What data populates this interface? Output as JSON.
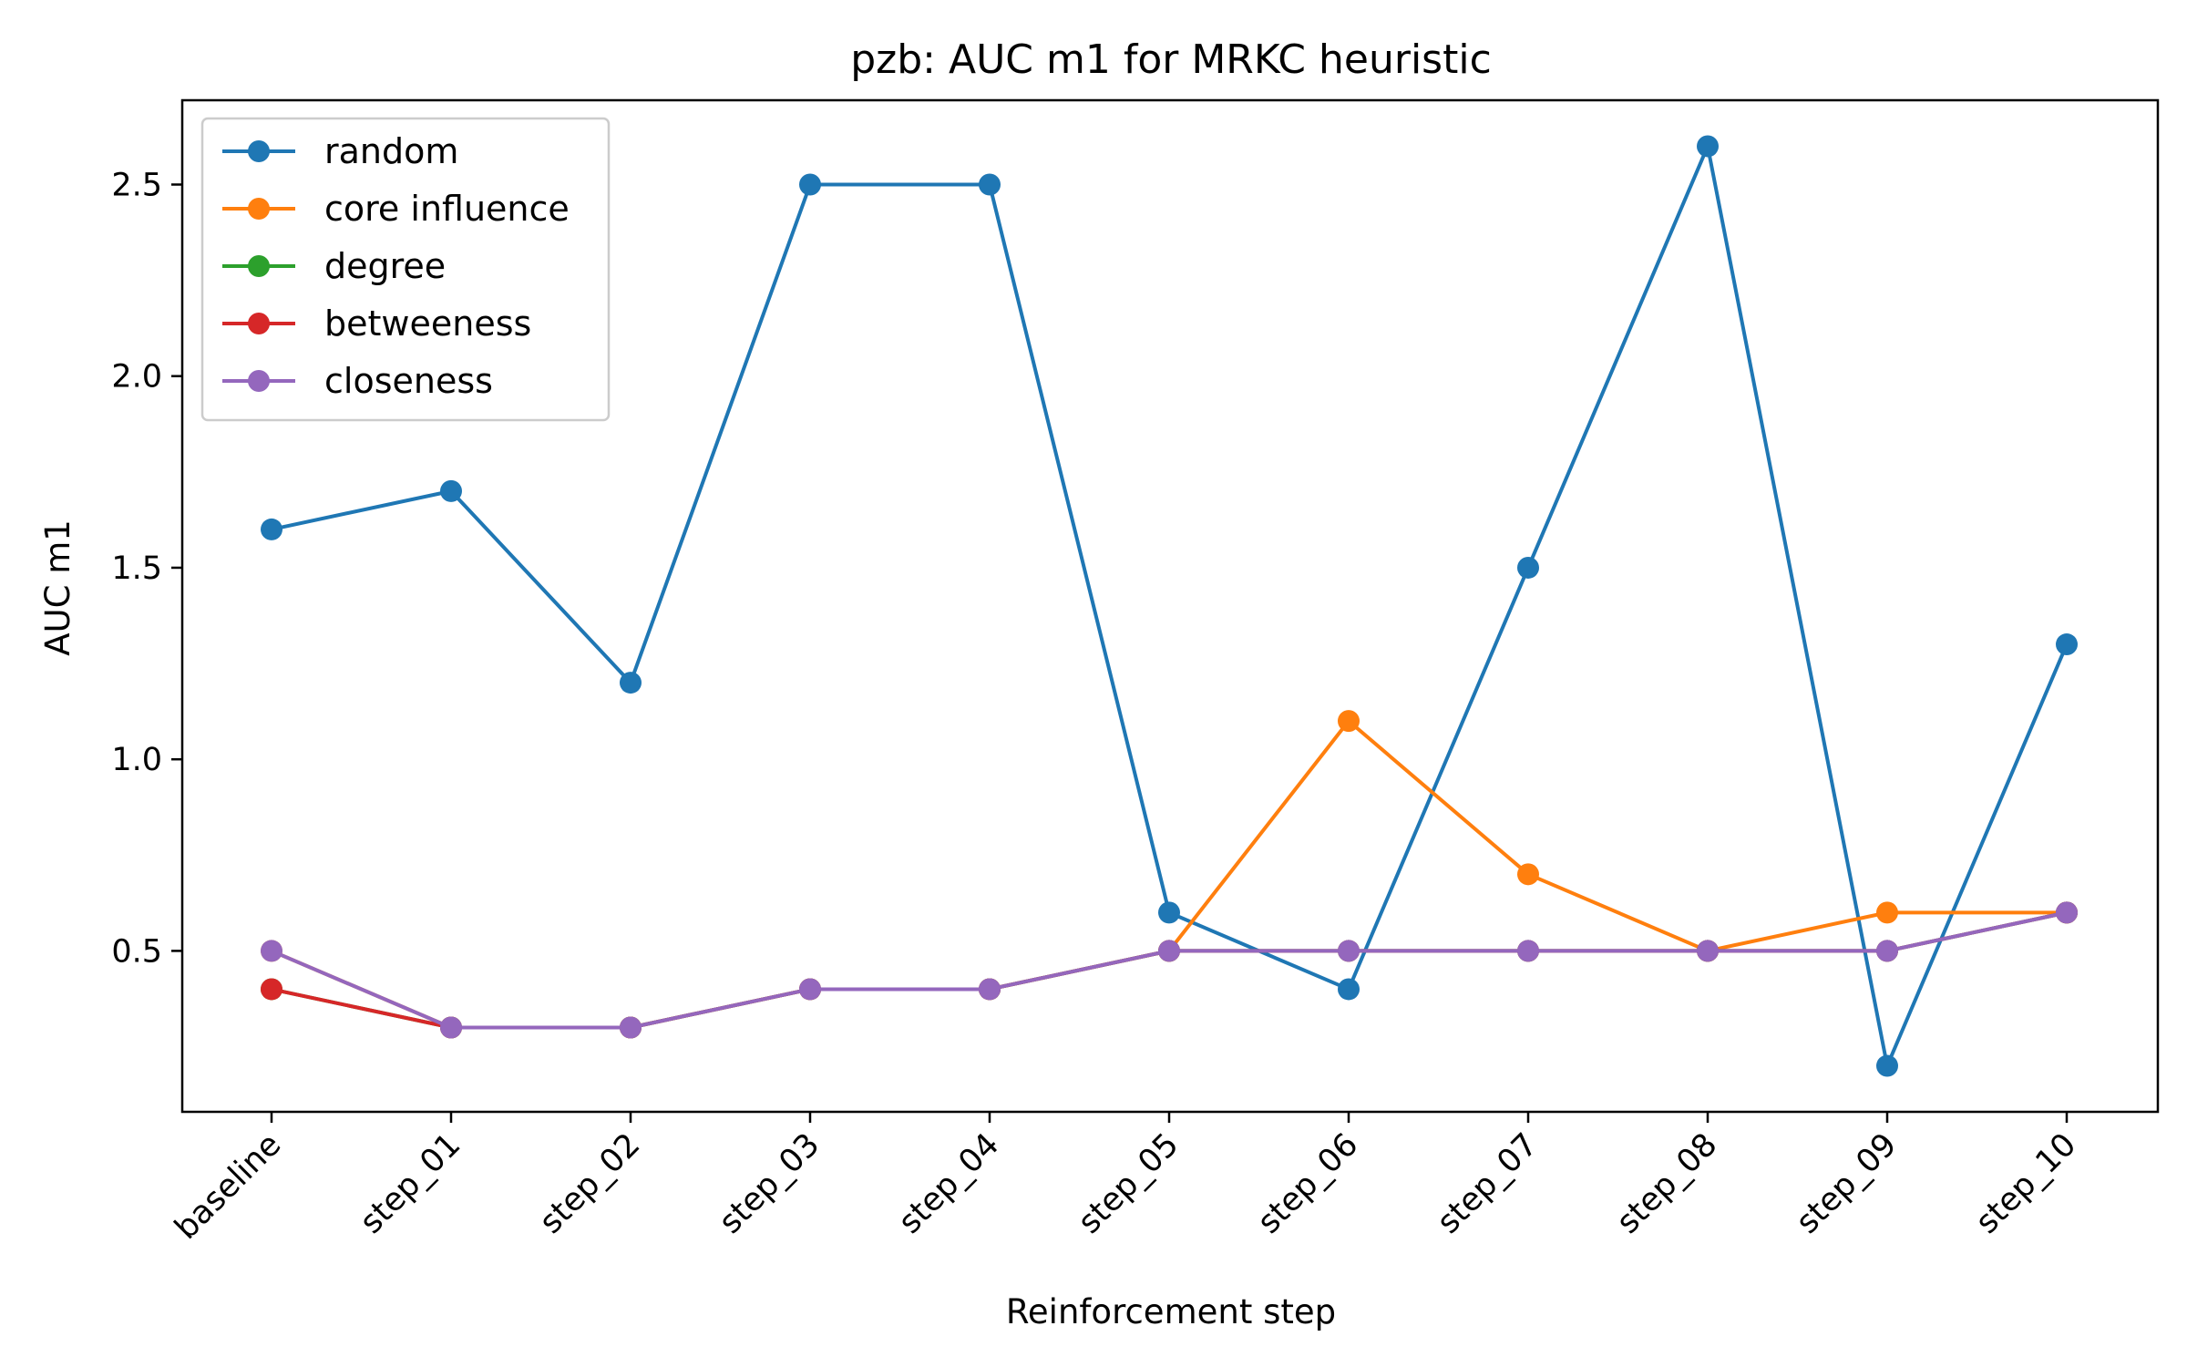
{
  "chart_data": {
    "type": "line",
    "title": "pzb: AUC m1 for MRKC heuristic",
    "xlabel": "Reinforcement step",
    "ylabel": "AUC m1",
    "categories": [
      "baseline",
      "step_01",
      "step_02",
      "step_03",
      "step_04",
      "step_05",
      "step_06",
      "step_07",
      "step_08",
      "step_09",
      "step_10"
    ],
    "ylim": [
      0.08,
      2.72
    ],
    "yticks": [
      "0.5",
      "1.0",
      "1.5",
      "2.0",
      "2.5"
    ],
    "grid": false,
    "legend_position": "upper-left",
    "series": [
      {
        "name": "random",
        "color": "#1f77b4",
        "values": [
          1.6,
          1.7,
          1.2,
          2.5,
          2.5,
          0.6,
          0.4,
          1.5,
          2.6,
          0.2,
          1.3
        ]
      },
      {
        "name": "core influence",
        "color": "#ff7f0e",
        "values": [
          0.5,
          0.3,
          0.3,
          0.4,
          0.4,
          0.5,
          1.1,
          0.7,
          0.5,
          0.6,
          0.6
        ]
      },
      {
        "name": "degree",
        "color": "#2ca02c",
        "values": [
          0.4,
          0.3,
          0.3,
          0.4,
          0.4,
          0.5,
          0.5,
          0.5,
          0.5,
          0.5,
          0.6
        ]
      },
      {
        "name": "betweeness",
        "color": "#d62728",
        "values": [
          0.4,
          0.3,
          0.3,
          0.4,
          0.4,
          0.5,
          0.5,
          0.5,
          0.5,
          0.5,
          0.6
        ]
      },
      {
        "name": "closeness",
        "color": "#9467bd",
        "values": [
          0.5,
          0.3,
          0.3,
          0.4,
          0.4,
          0.5,
          0.5,
          0.5,
          0.5,
          0.5,
          0.6
        ]
      }
    ]
  }
}
